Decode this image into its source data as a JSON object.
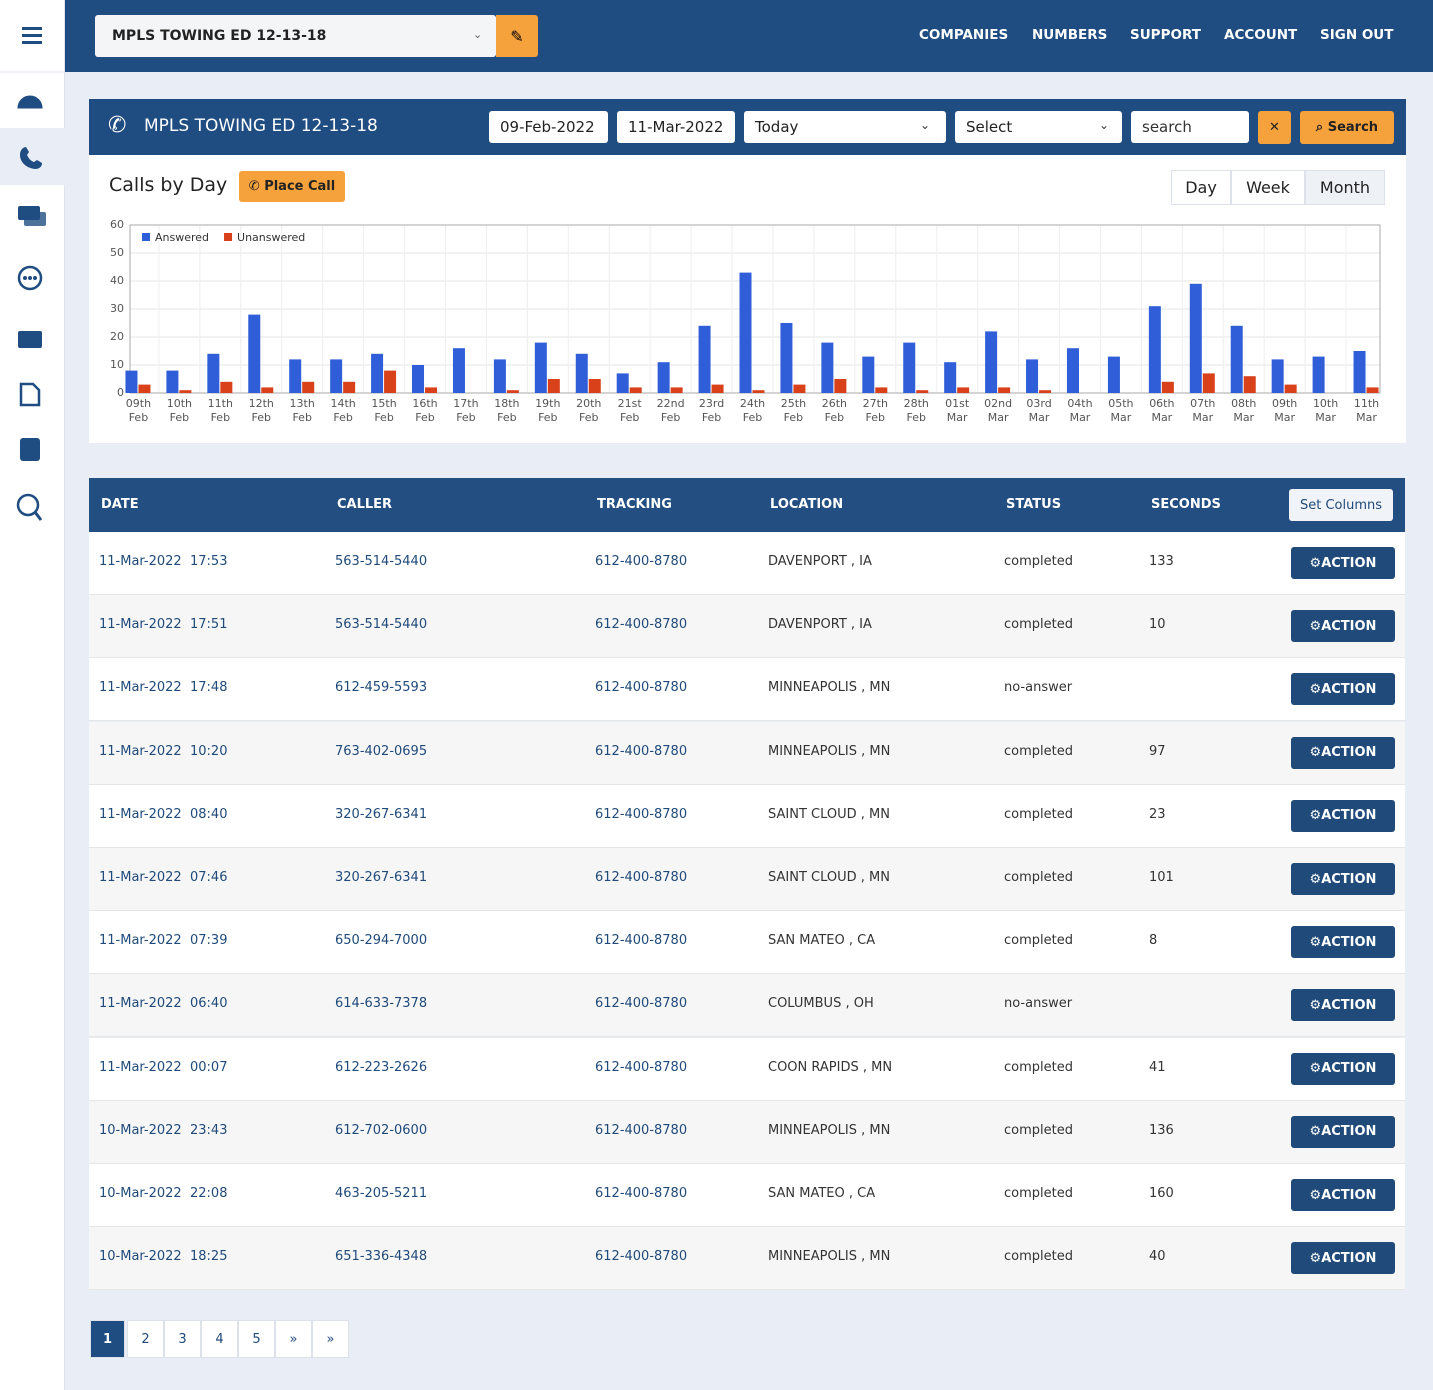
{
  "header": {
    "company": "MPLS TOWING ED 12-13-18",
    "nav": [
      "COMPANIES",
      "NUMBERS",
      "SUPPORT",
      "ACCOUNT",
      "SIGN OUT"
    ]
  },
  "panel": {
    "title": "MPLS TOWING ED 12-13-18",
    "date_from": "09-Feb-2022",
    "date_to": "11-Mar-2022",
    "range": "Today",
    "select": "Select",
    "search": "search",
    "search_button": "Search",
    "chart_title": "Calls by Day",
    "place_call": "Place Call",
    "views": [
      "Day",
      "Week",
      "Month"
    ]
  },
  "chart_data": {
    "type": "bar",
    "categories": [
      "09th Feb",
      "10th Feb",
      "11th Feb",
      "12th Feb",
      "13th Feb",
      "14th Feb",
      "15th Feb",
      "16th Feb",
      "17th Feb",
      "18th Feb",
      "19th Feb",
      "20th Feb",
      "21st Feb",
      "22nd Feb",
      "23rd Feb",
      "24th Feb",
      "25th Feb",
      "26th Feb",
      "27th Feb",
      "28th Feb",
      "01st Mar",
      "02nd Mar",
      "03rd Mar",
      "04th Mar",
      "05th Mar",
      "06th Mar",
      "07th Mar",
      "08th Mar",
      "09th Mar",
      "10th Mar",
      "11th Mar"
    ],
    "series": [
      {
        "name": "Answered",
        "color": "#2f5ed8",
        "values": [
          8,
          8,
          14,
          28,
          12,
          12,
          14,
          10,
          16,
          12,
          18,
          14,
          7,
          11,
          24,
          43,
          25,
          18,
          13,
          18,
          11,
          22,
          12,
          16,
          13,
          31,
          39,
          24,
          12,
          13,
          15
        ]
      },
      {
        "name": "Unanswered",
        "color": "#d9411b",
        "values": [
          3,
          1,
          4,
          2,
          4,
          4,
          8,
          2,
          0,
          1,
          5,
          5,
          2,
          2,
          3,
          1,
          3,
          5,
          2,
          1,
          2,
          2,
          1,
          0,
          0,
          4,
          7,
          6,
          3,
          0,
          2
        ]
      }
    ],
    "ylim": [
      0,
      60
    ],
    "yticks": [
      0,
      10,
      20,
      30,
      40,
      50,
      60
    ],
    "grid": true,
    "legend": "top-left"
  },
  "table": {
    "columns": [
      "DATE",
      "CALLER",
      "TRACKING",
      "LOCATION",
      "STATUS",
      "SECONDS"
    ],
    "set_columns": "Set Columns",
    "action": "ACTION",
    "rows": [
      [
        "11-Mar-2022",
        "17:53",
        "563-514-5440",
        "612-400-8780",
        "DAVENPORT , IA",
        "completed",
        133
      ],
      [
        "11-Mar-2022",
        "17:51",
        "563-514-5440",
        "612-400-8780",
        "DAVENPORT , IA",
        "completed",
        10
      ],
      [
        "11-Mar-2022",
        "17:48",
        "612-459-5593",
        "612-400-8780",
        "MINNEAPOLIS , MN",
        "no-answer",
        null
      ],
      [
        "11-Mar-2022",
        "10:20",
        "763-402-0695",
        "612-400-8780",
        "MINNEAPOLIS , MN",
        "completed",
        97
      ],
      [
        "11-Mar-2022",
        "08:40",
        "320-267-6341",
        "612-400-8780",
        "SAINT CLOUD , MN",
        "completed",
        23
      ],
      [
        "11-Mar-2022",
        "07:46",
        "320-267-6341",
        "612-400-8780",
        "SAINT CLOUD , MN",
        "completed",
        101
      ],
      [
        "11-Mar-2022",
        "07:39",
        "650-294-7000",
        "612-400-8780",
        "SAN MATEO , CA",
        "completed",
        8
      ],
      [
        "11-Mar-2022",
        "06:40",
        "614-633-7378",
        "612-400-8780",
        "COLUMBUS , OH",
        "no-answer",
        null
      ],
      [
        "11-Mar-2022",
        "00:07",
        "612-223-2626",
        "612-400-8780",
        "COON RAPIDS , MN",
        "completed",
        41
      ],
      [
        "10-Mar-2022",
        "23:43",
        "612-702-0600",
        "612-400-8780",
        "MINNEAPOLIS , MN",
        "completed",
        136
      ],
      [
        "10-Mar-2022",
        "22:08",
        "463-205-5211",
        "612-400-8780",
        "SAN MATEO , CA",
        "completed",
        160
      ],
      [
        "10-Mar-2022",
        "18:25",
        "651-336-4348",
        "612-400-8780",
        "MINNEAPOLIS , MN",
        "completed",
        40
      ]
    ]
  },
  "pagination": [
    "1",
    "2",
    "3",
    "4",
    "5",
    "»",
    "»"
  ]
}
